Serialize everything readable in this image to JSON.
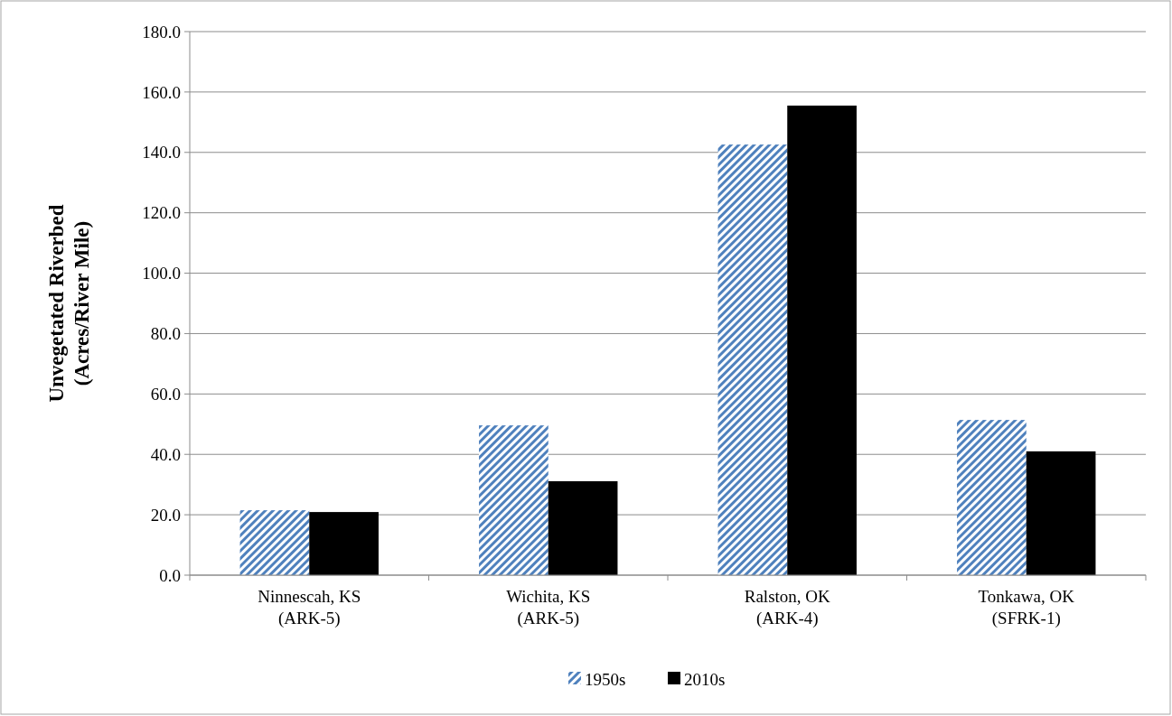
{
  "chart_data": {
    "type": "bar",
    "ylabel": "Unvegetated Riverbed\n(Acres/River Mile)",
    "categories": [
      "Ninnescah, KS\n(ARK-5)",
      "Wichita, KS\n(ARK-5)",
      "Ralston, OK\n(ARK-4)",
      "Tonkawa, OK\n(SFRK-1)"
    ],
    "series": [
      {
        "name": "1950s",
        "color": "#4f81bd",
        "values": [
          21.5,
          49.6,
          142.6,
          51.4
        ]
      },
      {
        "name": "2010s",
        "color": "#000000",
        "values": [
          20.9,
          31.1,
          155.5,
          41.0
        ]
      }
    ],
    "ylim": [
      0,
      180
    ],
    "yticks": [
      {
        "value": 0,
        "label": "0.0"
      },
      {
        "value": 20,
        "label": "20.0"
      },
      {
        "value": 40,
        "label": "40.0"
      },
      {
        "value": 60,
        "label": "60.0"
      },
      {
        "value": 80,
        "label": "80.0"
      },
      {
        "value": 100,
        "label": "100.0"
      },
      {
        "value": 120,
        "label": "120.0"
      },
      {
        "value": 140,
        "label": "140.0"
      },
      {
        "value": 160,
        "label": "160.0"
      },
      {
        "value": 180,
        "label": "180.0"
      }
    ],
    "grid": "y",
    "legend": "bottom"
  }
}
